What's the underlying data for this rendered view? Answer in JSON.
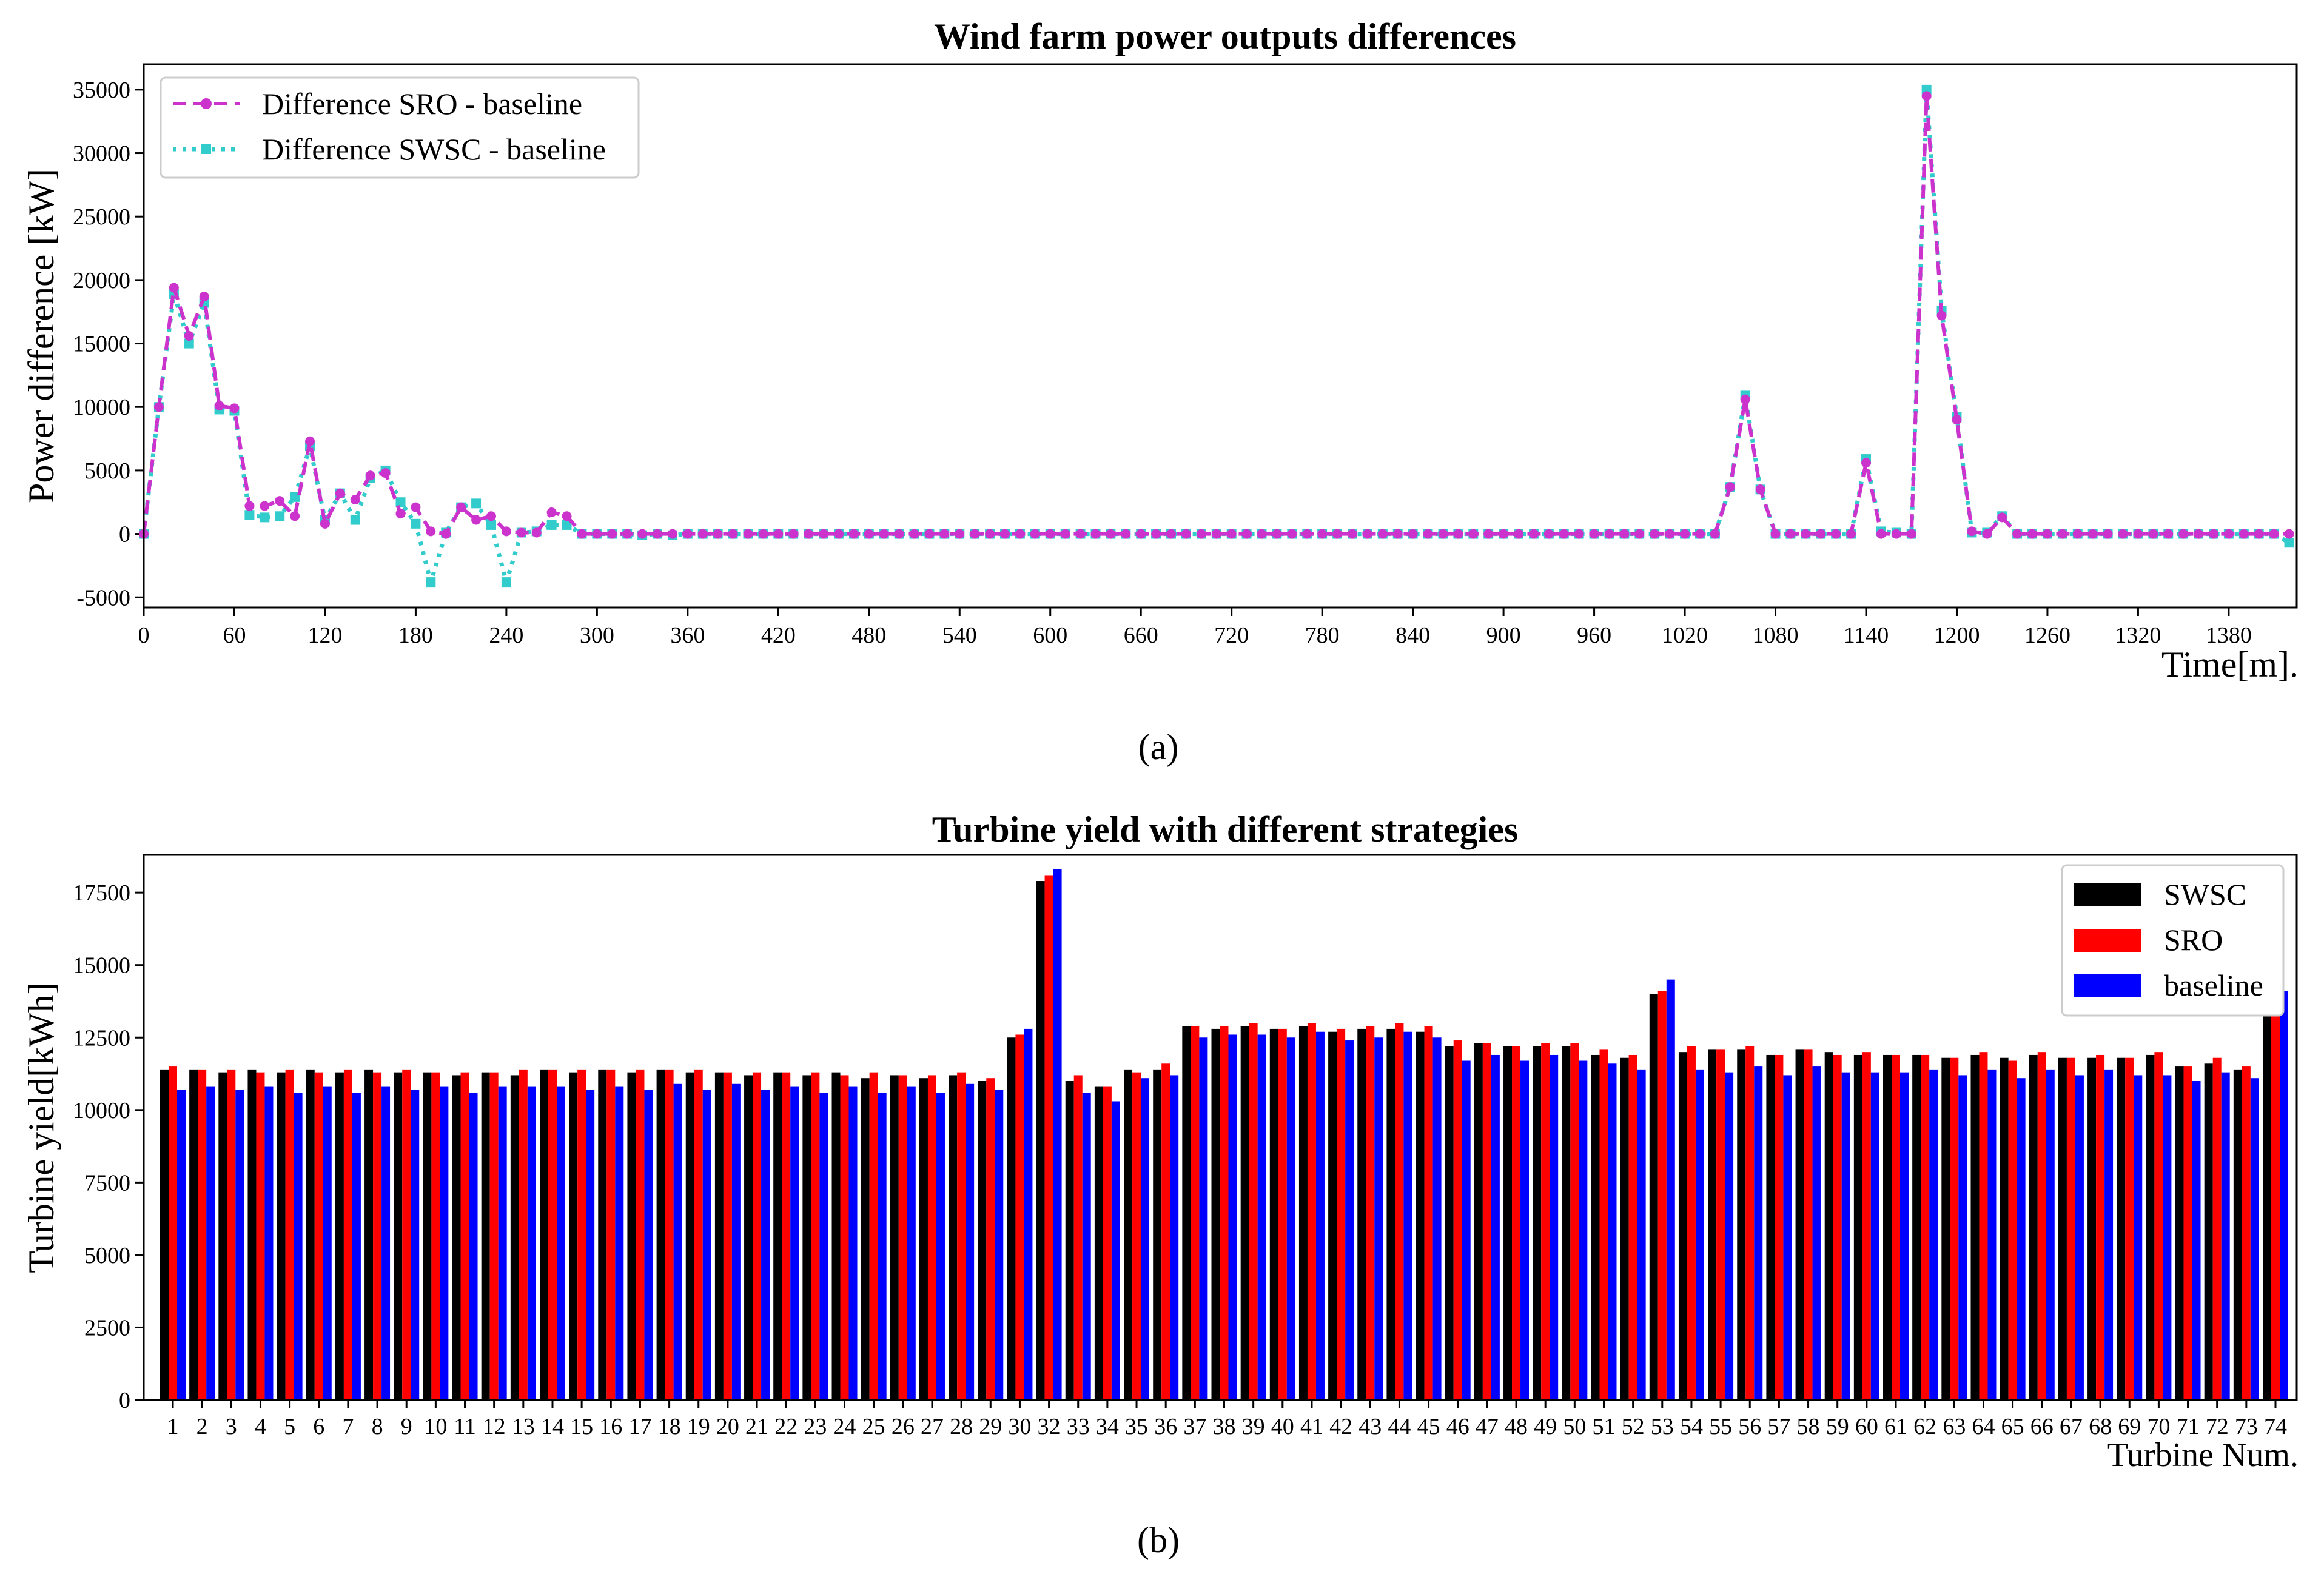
{
  "figure": {
    "caption_a": "(a)",
    "caption_b": "(b)"
  },
  "colors": {
    "sro_line": "#cc33cc",
    "swsc_line": "#33cccc",
    "swsc_bar": "#000000",
    "sro_bar": "#ff0000",
    "baseline_bar": "#0000ff"
  },
  "chart_data": [
    {
      "type": "line",
      "title": "Wind farm power outputs differences",
      "xlabel": "Time[m].",
      "ylabel": "Power difference [kW]",
      "xlim": [
        0,
        1425
      ],
      "ylim": [
        -5800,
        37000
      ],
      "x_ticks": [
        0,
        60,
        120,
        180,
        240,
        300,
        360,
        420,
        480,
        540,
        600,
        660,
        720,
        780,
        840,
        900,
        960,
        1020,
        1080,
        1140,
        1200,
        1260,
        1320,
        1380
      ],
      "y_ticks": [
        -5000,
        0,
        5000,
        10000,
        15000,
        20000,
        25000,
        30000,
        35000
      ],
      "legend_position": "top-left",
      "x_step": 10,
      "series": [
        {
          "name": "Difference SRO - baseline",
          "color": "#cc33cc",
          "values": [
            0,
            10000,
            19400,
            15600,
            18700,
            10100,
            9900,
            2200,
            2200,
            2600,
            1400,
            7300,
            800,
            3200,
            2700,
            4600,
            4800,
            1600,
            2100,
            200,
            0,
            2100,
            1100,
            1400,
            200,
            100,
            100,
            1700,
            1400,
            0,
            0,
            0,
            0,
            0,
            0,
            0,
            0,
            0,
            0,
            0,
            0,
            0,
            0,
            0,
            0,
            0,
            0,
            0,
            0,
            0,
            0,
            0,
            0,
            0,
            0,
            0,
            0,
            0,
            0,
            0,
            0,
            0,
            0,
            0,
            0,
            0,
            0,
            0,
            0,
            0,
            0,
            0,
            0,
            0,
            0,
            0,
            0,
            0,
            0,
            0,
            0,
            0,
            0,
            0,
            0,
            0,
            0,
            0,
            0,
            0,
            0,
            0,
            0,
            0,
            0,
            0,
            0,
            0,
            0,
            0,
            0,
            0,
            0,
            0,
            0,
            3700,
            10600,
            3500,
            0,
            0,
            0,
            0,
            0,
            0,
            5600,
            0,
            0,
            0,
            34500,
            17200,
            9000,
            200,
            0,
            1300,
            0,
            0,
            0,
            0,
            0,
            0,
            0,
            0,
            0,
            0,
            0,
            0,
            0,
            0,
            0,
            0,
            0,
            0,
            0
          ]
        },
        {
          "name": "Difference SWSC - baseline",
          "color": "#33cccc",
          "values": [
            0,
            10000,
            18900,
            15000,
            18200,
            9800,
            9700,
            1500,
            1300,
            1400,
            2900,
            6900,
            1100,
            3200,
            1100,
            4400,
            5000,
            2500,
            800,
            -3800,
            100,
            2100,
            2400,
            700,
            -3800,
            100,
            200,
            700,
            700,
            0,
            0,
            0,
            0,
            -100,
            0,
            -100,
            0,
            0,
            0,
            0,
            0,
            0,
            0,
            0,
            0,
            0,
            0,
            0,
            0,
            0,
            0,
            0,
            0,
            0,
            0,
            0,
            0,
            0,
            0,
            0,
            0,
            0,
            0,
            0,
            0,
            0,
            0,
            0,
            0,
            0,
            0,
            0,
            0,
            0,
            0,
            0,
            0,
            0,
            0,
            0,
            0,
            0,
            0,
            0,
            0,
            0,
            0,
            0,
            0,
            0,
            0,
            0,
            0,
            0,
            0,
            0,
            0,
            0,
            0,
            0,
            0,
            0,
            0,
            0,
            0,
            3700,
            10900,
            3500,
            0,
            0,
            0,
            0,
            0,
            0,
            5900,
            200,
            100,
            0,
            35000,
            17600,
            9200,
            100,
            100,
            1400,
            0,
            0,
            0,
            0,
            0,
            0,
            0,
            0,
            0,
            0,
            0,
            0,
            0,
            0,
            0,
            0,
            0,
            0,
            -700
          ]
        }
      ]
    },
    {
      "type": "bar",
      "title": "Turbine yield with different strategies",
      "xlabel": "Turbine Num.",
      "ylabel": "Turbine yield[kWh]",
      "ylim": [
        0,
        18800
      ],
      "y_ticks": [
        0,
        2500,
        5000,
        7500,
        10000,
        12500,
        15000,
        17500
      ],
      "legend_position": "top-right",
      "categories": [
        "1",
        "2",
        "3",
        "4",
        "5",
        "6",
        "7",
        "8",
        "9",
        "10",
        "11",
        "12",
        "13",
        "14",
        "15",
        "16",
        "17",
        "18",
        "19",
        "20",
        "21",
        "22",
        "23",
        "24",
        "25",
        "26",
        "27",
        "28",
        "29",
        "30",
        "32",
        "33",
        "34",
        "35",
        "36",
        "37",
        "38",
        "39",
        "40",
        "41",
        "42",
        "43",
        "44",
        "45",
        "46",
        "47",
        "48",
        "49",
        "50",
        "51",
        "52",
        "53",
        "54",
        "55",
        "56",
        "57",
        "58",
        "59",
        "60",
        "61",
        "62",
        "63",
        "64",
        "65",
        "66",
        "67",
        "68",
        "69",
        "70",
        "71",
        "72",
        "73",
        "74"
      ],
      "series": [
        {
          "name": "SWSC",
          "color": "#000000",
          "values": [
            11400,
            11400,
            11300,
            11400,
            11300,
            11400,
            11300,
            11400,
            11300,
            11300,
            11200,
            11300,
            11200,
            11400,
            11300,
            11400,
            11300,
            11400,
            11300,
            11300,
            11200,
            11300,
            11200,
            11300,
            11100,
            11200,
            11100,
            11200,
            11000,
            12500,
            17900,
            11000,
            10800,
            11400,
            11400,
            12900,
            12800,
            12900,
            12800,
            12900,
            12700,
            12800,
            12800,
            12700,
            12200,
            12300,
            12200,
            12200,
            12200,
            11900,
            11800,
            14000,
            12000,
            12100,
            12100,
            11900,
            12100,
            12000,
            11900,
            11900,
            11900,
            11800,
            11900,
            11800,
            11900,
            11800,
            11800,
            11800,
            11900,
            11500,
            11600,
            11400,
            14000
          ]
        },
        {
          "name": "SRO",
          "color": "#ff0000",
          "values": [
            11500,
            11400,
            11400,
            11300,
            11400,
            11300,
            11400,
            11300,
            11400,
            11300,
            11300,
            11300,
            11400,
            11400,
            11400,
            11400,
            11400,
            11400,
            11400,
            11300,
            11300,
            11300,
            11300,
            11200,
            11300,
            11200,
            11200,
            11300,
            11100,
            12600,
            18100,
            11200,
            10800,
            11300,
            11600,
            12900,
            12900,
            13000,
            12800,
            13000,
            12800,
            12900,
            13000,
            12900,
            12400,
            12300,
            12200,
            12300,
            12300,
            12100,
            11900,
            14100,
            12200,
            12100,
            12200,
            11900,
            12100,
            11900,
            12000,
            11900,
            11900,
            11800,
            12000,
            11700,
            12000,
            11800,
            11900,
            11800,
            12000,
            11500,
            11800,
            11500,
            14000
          ]
        },
        {
          "name": "baseline",
          "color": "#0000ff",
          "values": [
            10700,
            10800,
            10700,
            10800,
            10600,
            10800,
            10600,
            10800,
            10700,
            10800,
            10600,
            10800,
            10800,
            10800,
            10700,
            10800,
            10700,
            10900,
            10700,
            10900,
            10700,
            10800,
            10600,
            10800,
            10600,
            10800,
            10600,
            10900,
            10700,
            12800,
            18300,
            10600,
            10300,
            11100,
            11200,
            12500,
            12600,
            12600,
            12500,
            12700,
            12400,
            12500,
            12700,
            12500,
            11700,
            11900,
            11700,
            11900,
            11700,
            11600,
            11400,
            14500,
            11400,
            11300,
            11500,
            11200,
            11500,
            11300,
            11300,
            11300,
            11400,
            11200,
            11400,
            11100,
            11400,
            11200,
            11400,
            11200,
            11200,
            11000,
            11300,
            11100,
            14100
          ]
        }
      ]
    }
  ]
}
